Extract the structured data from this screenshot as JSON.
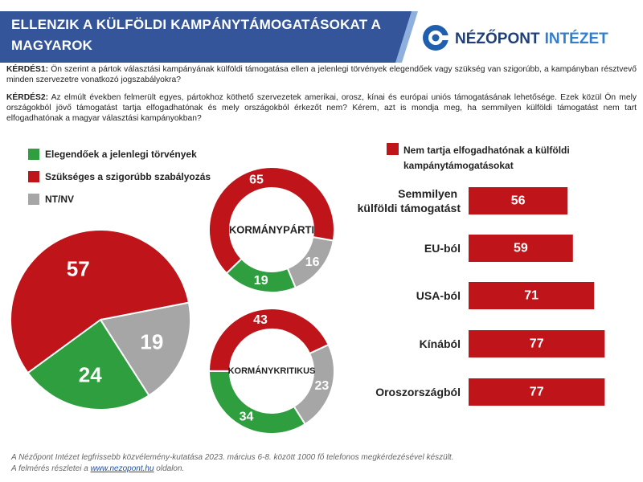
{
  "header": {
    "title": "ELLENZIK A KÜLFÖLDI KAMPÁNYTÁMOGATÁSOKAT A MAGYAROK",
    "logo_main": "NÉZŐPONT",
    "logo_accent": "INTÉZET"
  },
  "questions": [
    {
      "label": "KÉRDÉS1:",
      "text": "Ön szerint a pártok választási kampányának külföldi támogatása ellen a jelenlegi törvények elegendőek vagy szükség van szigorúbb, a kampányban résztvevő minden szervezetre vonatkozó jogszabályokra?"
    },
    {
      "label": "KÉRDÉS2:",
      "text": "Az elmúlt években felmerült egyes, pártokhoz köthető szervezetek amerikai, orosz, kínai és európai uniós támogatásának lehetősége. Ezek közül Ön mely országokból jövő támogatást tartja elfogadhatónak és mely országokból érkezőt nem? Kérem, azt is mondja meg, ha semmilyen külföldi támogatást nem tart elfogadhatónak a magyar választási kampányokban?"
    }
  ],
  "chart_data": [
    {
      "type": "pie",
      "categories": [
        "Elegendőek a jelenlegi törvények",
        "Szükséges a szigorúbb szabályozás",
        "NT/NV"
      ],
      "colors": [
        "#2f9e3f",
        "#c0141b",
        "#a6a6a6"
      ],
      "values": [
        24,
        57,
        19
      ]
    },
    {
      "type": "donut",
      "title": "KORMÁNYPÁRTI",
      "values": [
        19,
        65,
        16
      ]
    },
    {
      "type": "donut",
      "title": "KORMÁNYKRITIKUS",
      "values": [
        34,
        43,
        23
      ]
    },
    {
      "type": "bar",
      "orientation": "horizontal",
      "categories": [
        "Semmilyen külföldi támogatást",
        "EU-ból",
        "USA-ból",
        "Kínából",
        "Oroszországból"
      ],
      "series": [
        {
          "name": "Nem tartja elfogadhatónak a külföldi kampánytámogatásokat",
          "color": "#c0141b",
          "values": [
            56,
            59,
            71,
            77,
            77
          ]
        }
      ]
    }
  ],
  "footer": {
    "line1": "A Nézőpont Intézet legfrissebb közvélemény-kutatása  2023. március 6-8. között 1000 fő telefonos megkérdezésével készült.",
    "line2_before": "A felmérés részletei a",
    "link": "www.nezopont.hu",
    "line2_after": "oldalon."
  }
}
